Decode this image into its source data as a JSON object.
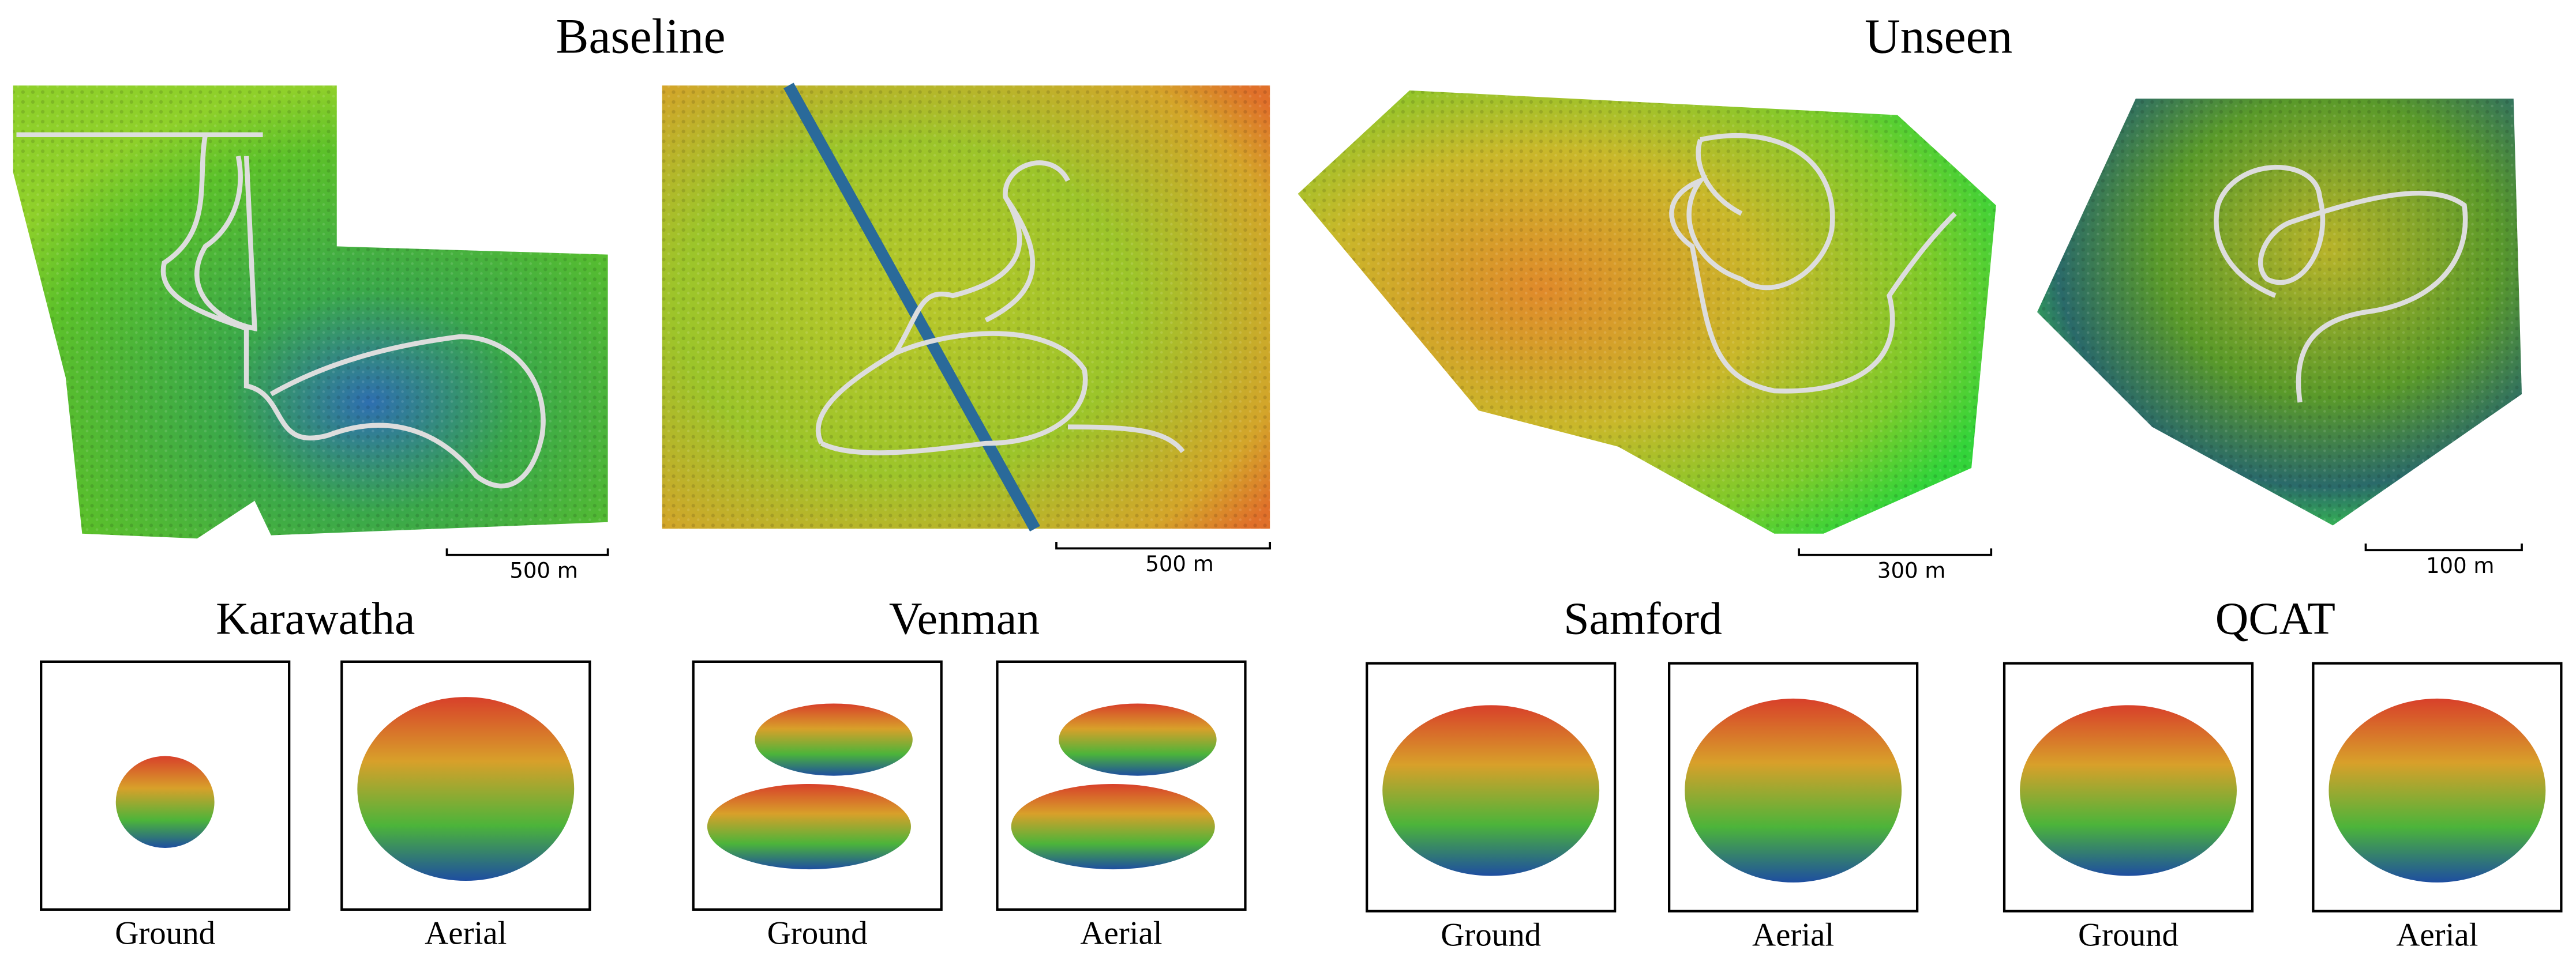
{
  "header": {
    "groups": [
      "Baseline",
      "Unseen"
    ]
  },
  "sites": [
    {
      "name": "Karawatha",
      "scale": "500 m",
      "views": [
        "Ground",
        "Aerial"
      ]
    },
    {
      "name": "Venman",
      "scale": "500 m",
      "views": [
        "Ground",
        "Aerial"
      ]
    },
    {
      "name": "Samford",
      "scale": "300 m",
      "views": [
        "Ground",
        "Aerial"
      ]
    },
    {
      "name": "QCAT",
      "scale": "100 m",
      "views": [
        "Ground",
        "Aerial"
      ]
    }
  ]
}
